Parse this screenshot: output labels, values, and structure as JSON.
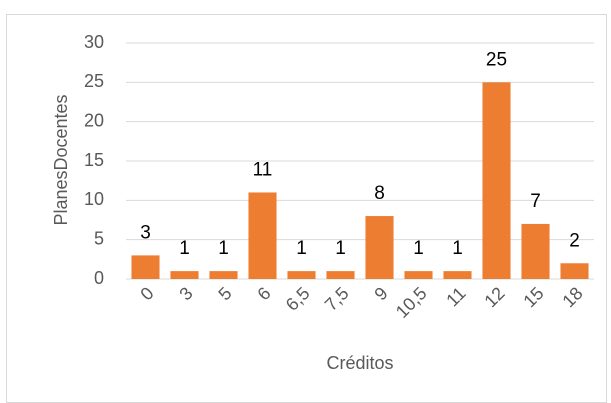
{
  "chart_data": {
    "type": "bar",
    "categories": [
      "0",
      "3",
      "5",
      "6",
      "6,5",
      "7,5",
      "9",
      "10,5",
      "11",
      "12",
      "15",
      "18"
    ],
    "values": [
      3,
      1,
      1,
      11,
      1,
      1,
      8,
      1,
      1,
      25,
      7,
      2
    ],
    "color": "#ed7d31",
    "ylim": [
      0,
      30
    ],
    "yticks": [
      0,
      5,
      10,
      15,
      20,
      25,
      30
    ],
    "grid": true,
    "x_label": "Créditos",
    "y_label": "PlanesDocentes"
  }
}
